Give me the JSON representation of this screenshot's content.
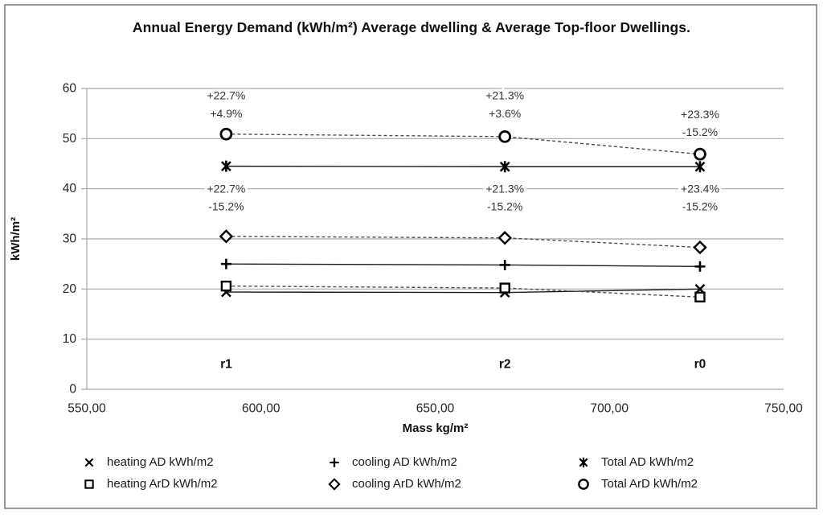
{
  "title": "Annual Energy Demand (kWh/m²) Average dwelling & Average Top-floor Dwellings.",
  "chart_data": {
    "type": "line",
    "x": [
      590,
      670,
      726
    ],
    "x_category_labels": [
      "r1",
      "r2",
      "r0"
    ],
    "category_label_y": 5,
    "xlabel": "Mass kg/m²",
    "ylabel": "kWh/m²",
    "xlim": [
      550,
      750
    ],
    "ylim": [
      0,
      60
    ],
    "x_ticks": [
      "550,00",
      "600,00",
      "650,00",
      "700,00",
      "750,00"
    ],
    "x_tick_values": [
      550,
      600,
      650,
      700,
      750
    ],
    "y_ticks": [
      0,
      10,
      20,
      30,
      40,
      50,
      60
    ],
    "grid": "horizontal-only",
    "legend_position": "bottom",
    "series": [
      {
        "name": "heating AD kWh/m2",
        "marker": "x",
        "line": "solid",
        "values": [
          19.4,
          19.3,
          20.0
        ]
      },
      {
        "name": "heating ArD kWh/m2",
        "marker": "square",
        "line": "dashed",
        "values": [
          20.6,
          20.2,
          18.4
        ]
      },
      {
        "name": "cooling AD kWh/m2",
        "marker": "plus",
        "line": "solid",
        "values": [
          25.0,
          24.8,
          24.5
        ]
      },
      {
        "name": "cooling ArD kWh/m2",
        "marker": "diamond",
        "line": "dashed",
        "values": [
          30.5,
          30.2,
          28.3
        ]
      },
      {
        "name": "Total AD kWh/m2",
        "marker": "star",
        "line": "solid",
        "values": [
          44.5,
          44.4,
          44.4
        ]
      },
      {
        "name": "Total ArD kWh/m2",
        "marker": "circle",
        "line": "dashed",
        "values": [
          50.9,
          50.4,
          46.9
        ]
      }
    ],
    "annotations": [
      {
        "x": 590,
        "y": 58.6,
        "text": "+22.7%"
      },
      {
        "x": 590,
        "y": 55.0,
        "text": "+4.9%"
      },
      {
        "x": 590,
        "y": 40.0,
        "text": "+22.7%"
      },
      {
        "x": 590,
        "y": 36.5,
        "text": "-15.2%"
      },
      {
        "x": 670,
        "y": 58.6,
        "text": "+21.3%"
      },
      {
        "x": 670,
        "y": 55.0,
        "text": "+3.6%"
      },
      {
        "x": 670,
        "y": 40.0,
        "text": "+21.3%"
      },
      {
        "x": 670,
        "y": 36.5,
        "text": "-15.2%"
      },
      {
        "x": 726,
        "y": 54.9,
        "text": "+23.3%"
      },
      {
        "x": 726,
        "y": 51.3,
        "text": "-15.2%"
      },
      {
        "x": 726,
        "y": 40.0,
        "text": "+23.4%"
      },
      {
        "x": 726,
        "y": 36.5,
        "text": "-15.2%"
      }
    ]
  },
  "legend": {
    "items": [
      {
        "label": "heating AD kWh/m2",
        "marker": "x"
      },
      {
        "label": "cooling AD kWh/m2",
        "marker": "plus"
      },
      {
        "label": "Total AD kWh/m2",
        "marker": "star"
      },
      {
        "label": "heating ArD kWh/m2",
        "marker": "square"
      },
      {
        "label": "cooling ArD kWh/m2",
        "marker": "diamond"
      },
      {
        "label": "Total ArD kWh/m2",
        "marker": "circle"
      }
    ]
  },
  "colors": {
    "marker": "#000000",
    "solid_line": "#1a1a1a",
    "dashed_line": "#4d4d4d",
    "grid": "#a8a8a8",
    "tick_text": "#262626",
    "annotation_text": "#333333",
    "frame_border": "#9a9a9a"
  }
}
